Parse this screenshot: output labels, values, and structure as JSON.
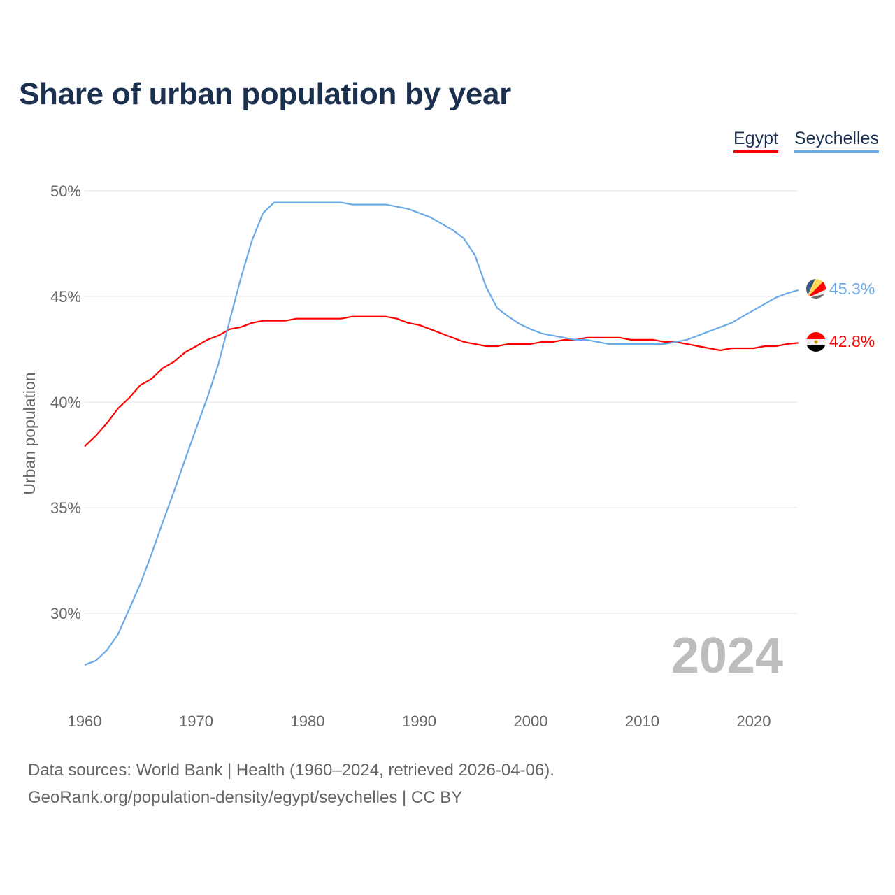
{
  "chart_data": {
    "type": "line",
    "title": "Share of urban population by year",
    "xlabel": "",
    "ylabel": "Urban population",
    "xlim": [
      1960,
      2024
    ],
    "ylim": [
      26.5,
      51
    ],
    "yticks": [
      30,
      35,
      40,
      45,
      50
    ],
    "ytick_labels": [
      "30%",
      "35%",
      "40%",
      "45%",
      "50%"
    ],
    "xticks": [
      1960,
      1970,
      1980,
      1990,
      2000,
      2010,
      2020
    ],
    "xtick_labels": [
      "1960",
      "1970",
      "1980",
      "1990",
      "2000",
      "2010",
      "2020"
    ],
    "grid": true,
    "legend_position": "top-right",
    "year_watermark": "2024",
    "x": [
      1960,
      1961,
      1962,
      1963,
      1964,
      1965,
      1966,
      1967,
      1968,
      1969,
      1970,
      1971,
      1972,
      1973,
      1974,
      1975,
      1976,
      1977,
      1978,
      1979,
      1980,
      1981,
      1982,
      1983,
      1984,
      1985,
      1986,
      1987,
      1988,
      1989,
      1990,
      1991,
      1992,
      1993,
      1994,
      1995,
      1996,
      1997,
      1998,
      1999,
      2000,
      2001,
      2002,
      2003,
      2004,
      2005,
      2006,
      2007,
      2008,
      2009,
      2010,
      2011,
      2012,
      2013,
      2014,
      2015,
      2016,
      2017,
      2018,
      2019,
      2020,
      2021,
      2022,
      2023,
      2024
    ],
    "series": [
      {
        "name": "Egypt",
        "color": "#ff0000",
        "end_label": "42.8%",
        "flag": "egypt-flag",
        "values": [
          37.9,
          38.4,
          39.0,
          39.7,
          40.2,
          40.8,
          41.1,
          41.6,
          41.9,
          42.35,
          42.65,
          42.95,
          43.15,
          43.45,
          43.55,
          43.75,
          43.85,
          43.85,
          43.85,
          43.95,
          43.95,
          43.95,
          43.95,
          43.95,
          44.05,
          44.05,
          44.05,
          44.05,
          43.95,
          43.75,
          43.65,
          43.45,
          43.25,
          43.05,
          42.85,
          42.75,
          42.65,
          42.65,
          42.75,
          42.75,
          42.75,
          42.85,
          42.85,
          42.95,
          42.95,
          43.05,
          43.05,
          43.05,
          43.05,
          42.95,
          42.95,
          42.95,
          42.85,
          42.85,
          42.75,
          42.65,
          42.55,
          42.45,
          42.55,
          42.55,
          42.55,
          42.65,
          42.65,
          42.75,
          42.8
        ]
      },
      {
        "name": "Seychelles",
        "color": "#6aaae8",
        "end_label": "45.3%",
        "flag": "seychelles-flag",
        "values": [
          27.55,
          27.75,
          28.25,
          29.0,
          30.2,
          31.4,
          32.8,
          34.3,
          35.75,
          37.25,
          38.75,
          40.2,
          41.8,
          43.85,
          45.85,
          47.65,
          48.95,
          49.45,
          49.45,
          49.45,
          49.45,
          49.45,
          49.45,
          49.45,
          49.35,
          49.35,
          49.35,
          49.35,
          49.25,
          49.15,
          48.95,
          48.75,
          48.45,
          48.15,
          47.75,
          46.95,
          45.45,
          44.45,
          44.05,
          43.7,
          43.45,
          43.25,
          43.15,
          43.05,
          42.95,
          42.95,
          42.85,
          42.75,
          42.75,
          42.75,
          42.75,
          42.75,
          42.75,
          42.85,
          42.95,
          43.15,
          43.35,
          43.55,
          43.75,
          44.05,
          44.35,
          44.65,
          44.95,
          45.15,
          45.3
        ]
      }
    ]
  },
  "footer": {
    "line1": "Data sources: World Bank | Health (1960–2024, retrieved 2026-04-06).",
    "line2": "GeoRank.org/population-density/egypt/seychelles | CC BY"
  }
}
